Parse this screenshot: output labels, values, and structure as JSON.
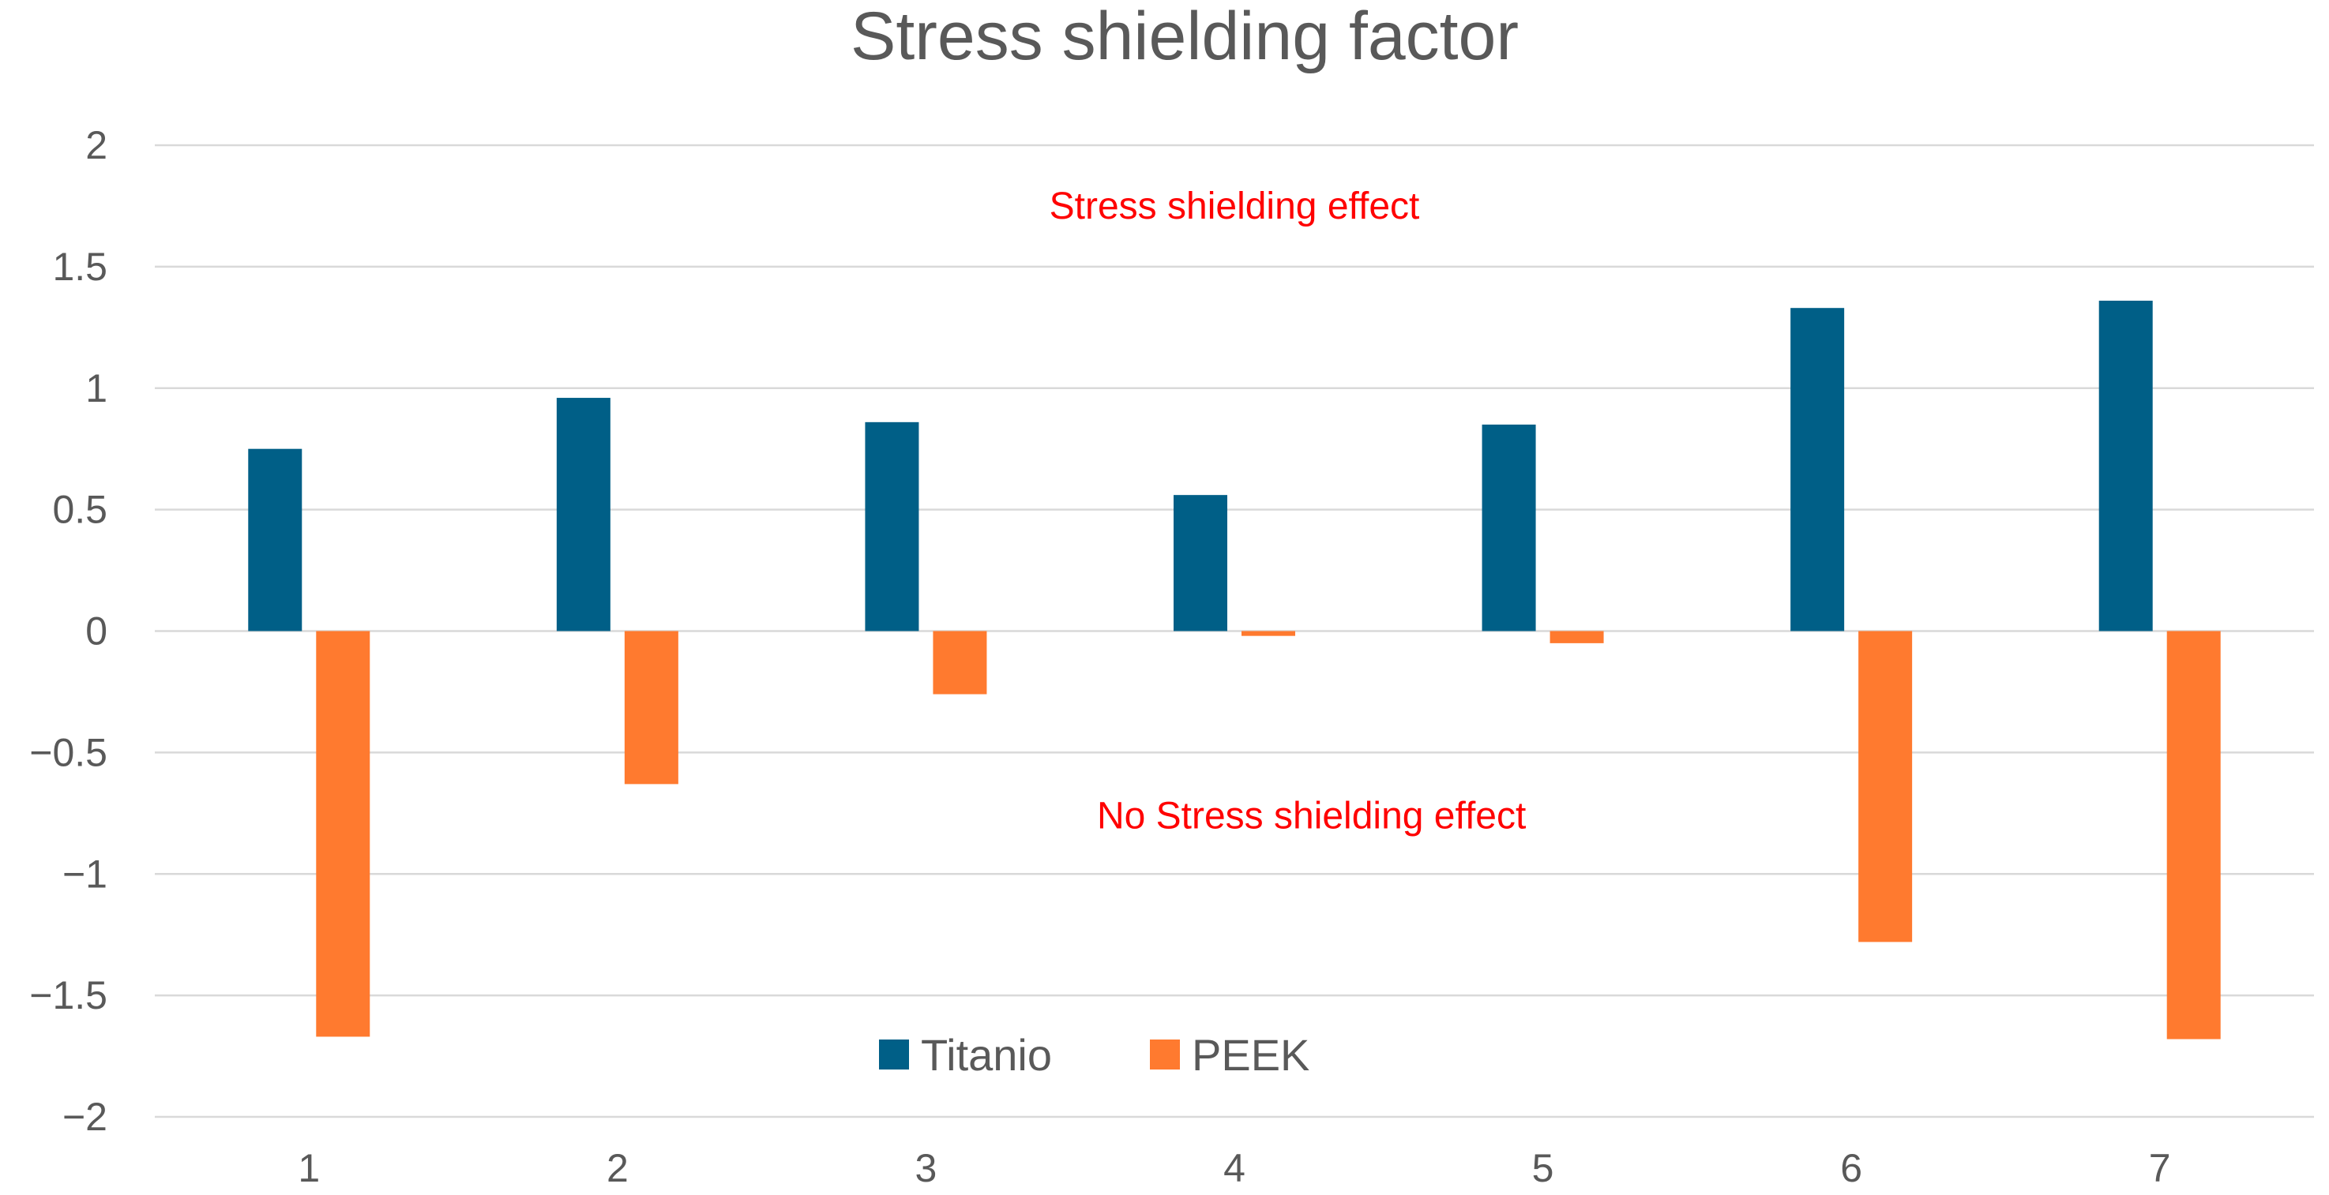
{
  "chart_data": {
    "type": "bar",
    "title": "Stress shielding factor",
    "xlabel": "",
    "ylabel": "",
    "categories": [
      "1",
      "2",
      "3",
      "4",
      "5",
      "6",
      "7"
    ],
    "series": [
      {
        "name": "Titanio",
        "color": "#005f87",
        "values": [
          0.75,
          0.96,
          0.86,
          0.56,
          0.85,
          1.33,
          1.36
        ]
      },
      {
        "name": "PEEK",
        "color": "#ff7a2f",
        "values": [
          -1.67,
          -0.63,
          -0.26,
          -0.02,
          -0.05,
          -1.28,
          -1.68
        ]
      }
    ],
    "ylim": [
      -2,
      2
    ],
    "yticks": [
      {
        "value": 2,
        "label": "2"
      },
      {
        "value": 1.5,
        "label": "1.5"
      },
      {
        "value": 1,
        "label": "1"
      },
      {
        "value": 0.5,
        "label": "0.5"
      },
      {
        "value": 0,
        "label": "0"
      },
      {
        "value": -0.5,
        "label": "−0.5"
      },
      {
        "value": -1,
        "label": "−1"
      },
      {
        "value": -1.5,
        "label": "−1.5"
      },
      {
        "value": -2,
        "label": "−2"
      }
    ],
    "grid": true,
    "legend_position": "bottom-center",
    "annotations": [
      {
        "text": "Stress shielding effect",
        "x_category": 3.5,
        "y": 1.75
      },
      {
        "text": "No Stress shielding effect",
        "x_category": 3.75,
        "y": -0.76
      }
    ]
  }
}
